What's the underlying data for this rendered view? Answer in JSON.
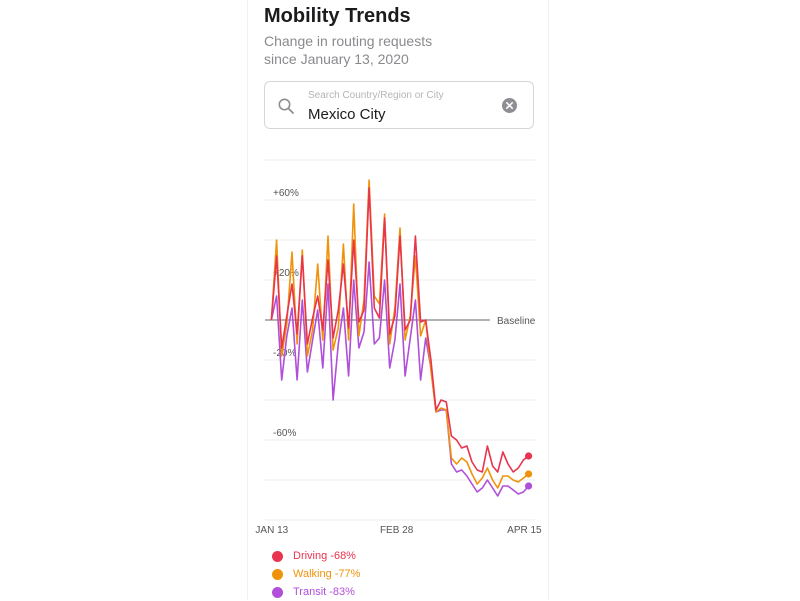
{
  "header": {
    "title": "Mobility Trends",
    "subtitle_line1": "Change in routing requests",
    "subtitle_line2": "since January 13, 2020"
  },
  "search": {
    "placeholder": "Search Country/Region or City",
    "value": "Mexico City",
    "icon": "search-icon",
    "clear_icon": "clear-icon"
  },
  "chart_data": {
    "type": "line",
    "baseline_label": "Baseline",
    "y_tick_labels": [
      "+60%",
      "+20%",
      "-20%",
      "-60%"
    ],
    "y_ticks": [
      60,
      20,
      -20,
      -60
    ],
    "ylim": [
      -100,
      80
    ],
    "x_tick_labels": [
      "JAN 13",
      "FEB 28",
      "APR 15"
    ],
    "x_ticks": [
      0,
      46,
      93
    ],
    "xlim": [
      -2,
      97
    ],
    "grid": true,
    "legend_position": "bottom-left",
    "series": [
      {
        "name": "Driving",
        "legend": "Driving -68%",
        "color": "#e8344e",
        "values": [
          0,
          32,
          -14,
          2,
          18,
          -7,
          32,
          -12,
          1,
          12,
          -5,
          30,
          -9,
          5,
          28,
          -4,
          40,
          -1,
          5,
          66,
          6,
          1,
          51,
          -7,
          2,
          42,
          -5,
          0,
          42,
          -1,
          0,
          -20,
          -45,
          -40,
          -41,
          -58,
          -60,
          -64,
          -63,
          -71,
          -75,
          -76,
          -63,
          -73,
          -76,
          -66,
          -72,
          -76,
          -74,
          -70,
          -68
        ]
      },
      {
        "name": "Walking",
        "legend": "Walking -77%",
        "color": "#f0930c",
        "values": [
          0,
          40,
          -18,
          -2,
          34,
          -12,
          35,
          -18,
          -5,
          28,
          -10,
          42,
          -15,
          -4,
          38,
          -10,
          58,
          -8,
          10,
          70,
          12,
          8,
          53,
          -12,
          6,
          46,
          -10,
          2,
          32,
          -8,
          0,
          -25,
          -46,
          -44,
          -45,
          -69,
          -72,
          -69,
          -71,
          -77,
          -82,
          -79,
          -74,
          -80,
          -84,
          -78,
          -78,
          -80,
          -81,
          -79,
          -77
        ]
      },
      {
        "name": "Transit",
        "legend": "Transit -83%",
        "color": "#b04fd9",
        "values": [
          0,
          12,
          -30,
          -8,
          6,
          -30,
          10,
          -26,
          -10,
          5,
          -24,
          18,
          -40,
          -12,
          6,
          -28,
          20,
          -14,
          -6,
          29,
          -12,
          -9,
          20,
          -24,
          -10,
          18,
          -28,
          -9,
          10,
          -30,
          -9,
          -24,
          -46,
          -45,
          -45,
          -72,
          -76,
          -75,
          -78,
          -82,
          -86,
          -84,
          -80,
          -84,
          -88,
          -83,
          -83,
          -85,
          -87,
          -86,
          -83
        ]
      }
    ]
  }
}
